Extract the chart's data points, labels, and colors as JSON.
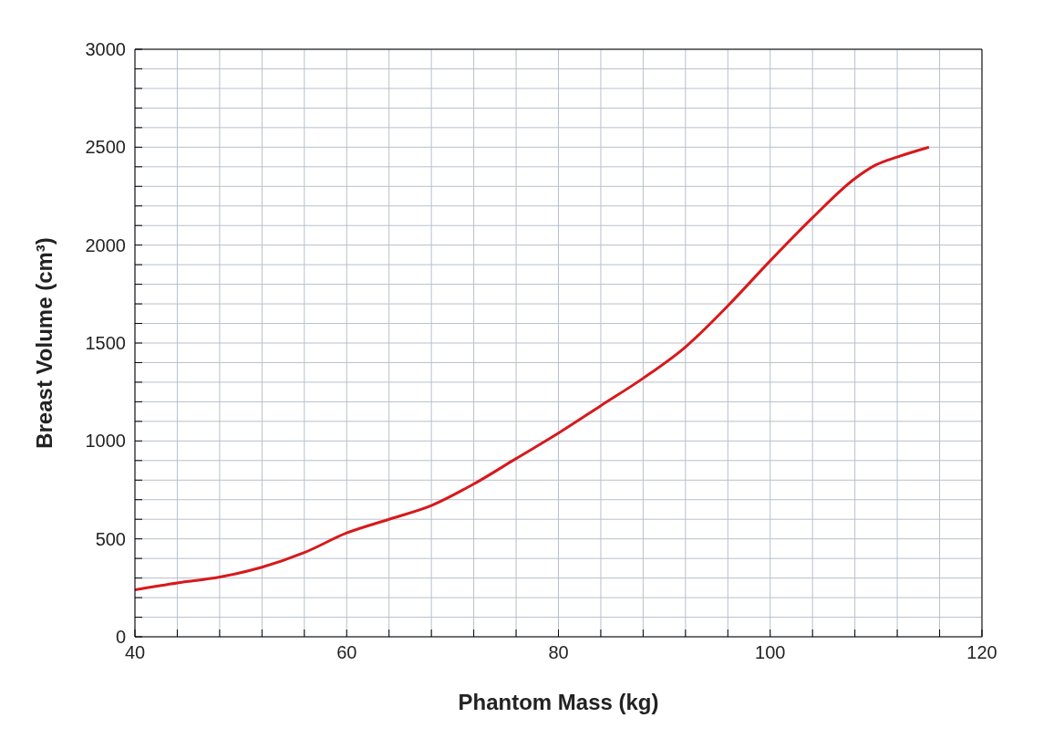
{
  "chart_data": {
    "type": "line",
    "xlabel": "Phantom Mass (kg)",
    "ylabel": "Breast Volume (cm³)",
    "x": [
      40,
      44,
      48,
      52,
      56,
      60,
      64,
      68,
      72,
      76,
      80,
      84,
      88,
      92,
      96,
      100,
      104,
      108,
      110,
      112,
      115
    ],
    "series": [
      {
        "color": "#d7191c",
        "values": [
          240,
          275,
          305,
          355,
          430,
          530,
          600,
          670,
          780,
          910,
          1040,
          1180,
          1320,
          1480,
          1690,
          1920,
          2140,
          2340,
          2410,
          2450,
          2500
        ]
      }
    ],
    "xlim": [
      40,
      120
    ],
    "xticks": [
      40,
      {
        "value": 44,
        "label": null
      },
      {
        "value": 48,
        "label": null
      },
      {
        "value": 52,
        "label": null
      },
      {
        "value": 56,
        "label": null
      },
      60,
      {
        "value": 64,
        "label": null
      },
      {
        "value": 68,
        "label": null
      },
      {
        "value": 72,
        "label": null
      },
      {
        "value": 76,
        "label": null
      },
      80,
      {
        "value": 84,
        "label": null
      },
      {
        "value": 88,
        "label": null
      },
      {
        "value": 92,
        "label": null
      },
      {
        "value": 96,
        "label": null
      },
      100,
      {
        "value": 104,
        "label": null
      },
      {
        "value": 108,
        "label": null
      },
      {
        "value": 112,
        "label": null
      },
      {
        "value": 116,
        "label": null
      },
      120
    ],
    "ylim": [
      0,
      3000
    ],
    "yticks": [
      0,
      {
        "value": 100,
        "label": null
      },
      {
        "value": 200,
        "label": null
      },
      {
        "value": 300,
        "label": null
      },
      {
        "value": 400,
        "label": null
      },
      500,
      {
        "value": 600,
        "label": null
      },
      {
        "value": 700,
        "label": null
      },
      {
        "value": 800,
        "label": null
      },
      {
        "value": 900,
        "label": null
      },
      1000,
      {
        "value": 1100,
        "label": null
      },
      {
        "value": 1200,
        "label": null
      },
      {
        "value": 1300,
        "label": null
      },
      {
        "value": 1400,
        "label": null
      },
      1500,
      {
        "value": 1600,
        "label": null
      },
      {
        "value": 1700,
        "label": null
      },
      {
        "value": 1800,
        "label": null
      },
      {
        "value": 1900,
        "label": null
      },
      2000,
      {
        "value": 2100,
        "label": null
      },
      {
        "value": 2200,
        "label": null
      },
      {
        "value": 2300,
        "label": null
      },
      {
        "value": 2400,
        "label": null
      },
      2500,
      {
        "value": 2600,
        "label": null
      },
      {
        "value": 2700,
        "label": null
      },
      {
        "value": 2800,
        "label": null
      },
      {
        "value": 2900,
        "label": null
      },
      3000
    ],
    "grid": true,
    "marker": "none",
    "line_style": "solid"
  }
}
